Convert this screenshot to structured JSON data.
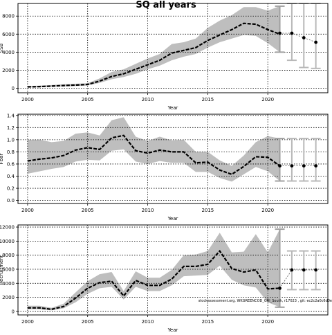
{
  "title": "SQ all years",
  "watermark": "stockassessment.org, WKGREENCOD_GRI_South, r17023 , git: ec2c2a0c6d0e",
  "chart_data": [
    {
      "type": "line",
      "xlabel": "Year",
      "ylabel": "SSB",
      "xlim": [
        1999.2,
        2025
      ],
      "ylim": [
        -500,
        9400
      ],
      "xticks": [
        2000,
        2005,
        2010,
        2015,
        2020
      ],
      "yticks": [
        0,
        2000,
        4000,
        6000,
        8000
      ],
      "ytick_labels": [
        "0",
        "2000",
        "4000",
        "6000",
        "8000"
      ],
      "grid": true,
      "band_color": "#bebebe",
      "line_color": "#000000",
      "x": [
        2000,
        2001,
        2002,
        2003,
        2004,
        2005,
        2006,
        2007,
        2008,
        2009,
        2010,
        2011,
        2012,
        2013,
        2014,
        2015,
        2016,
        2017,
        2018,
        2019,
        2020,
        2021
      ],
      "estimate": [
        150,
        180,
        240,
        300,
        350,
        420,
        800,
        1300,
        1600,
        2100,
        2600,
        3100,
        3900,
        4200,
        4500,
        5300,
        5900,
        6500,
        7200,
        7100,
        6500,
        6000
      ],
      "lower": [
        100,
        110,
        150,
        200,
        250,
        300,
        600,
        1000,
        1250,
        1600,
        2100,
        2500,
        3100,
        3500,
        3800,
        4500,
        5100,
        5500,
        5900,
        5800,
        5000,
        4000
      ],
      "upper": [
        250,
        280,
        350,
        450,
        500,
        550,
        1100,
        1800,
        2100,
        2700,
        3300,
        3800,
        4900,
        5100,
        5500,
        6700,
        7500,
        8100,
        9000,
        9000,
        8600,
        9100
      ],
      "forecast": [
        {
          "x": 2021,
          "median": 6100,
          "low": 4000,
          "high": 9100
        },
        {
          "x": 2022,
          "median": 6100,
          "low": 3100,
          "high": 9400
        },
        {
          "x": 2023,
          "median": 5600,
          "low": 2300,
          "high": 9400
        },
        {
          "x": 2024,
          "median": 5100,
          "low": 2200,
          "high": 9400
        }
      ]
    },
    {
      "type": "line",
      "xlabel": "Year",
      "ylabel": "Fbar",
      "xlim": [
        1999.2,
        2025
      ],
      "ylim": [
        -0.05,
        1.42
      ],
      "xticks": [
        2000,
        2005,
        2010,
        2015,
        2020
      ],
      "yticks": [
        0.0,
        0.2,
        0.4,
        0.6,
        0.8,
        1.0,
        1.2,
        1.4
      ],
      "ytick_labels": [
        "0.0",
        "0.2",
        "0.4",
        "0.6",
        "0.8",
        "1.0",
        "1.2",
        "1.4"
      ],
      "grid": true,
      "band_color": "#bebebe",
      "line_color": "#000000",
      "x": [
        2000,
        2001,
        2002,
        2003,
        2004,
        2005,
        2006,
        2007,
        2008,
        2009,
        2010,
        2011,
        2012,
        2013,
        2014,
        2015,
        2016,
        2017,
        2018,
        2019,
        2020,
        2021
      ],
      "estimate": [
        0.65,
        0.68,
        0.7,
        0.74,
        0.83,
        0.87,
        0.84,
        1.03,
        1.07,
        0.82,
        0.78,
        0.83,
        0.8,
        0.8,
        0.62,
        0.63,
        0.5,
        0.43,
        0.56,
        0.72,
        0.71,
        0.57
      ],
      "lower": [
        0.44,
        0.48,
        0.52,
        0.55,
        0.64,
        0.67,
        0.66,
        0.82,
        0.84,
        0.64,
        0.6,
        0.65,
        0.62,
        0.62,
        0.47,
        0.47,
        0.37,
        0.31,
        0.43,
        0.55,
        0.48,
        0.32
      ],
      "upper": [
        1.0,
        1.0,
        0.96,
        0.98,
        1.1,
        1.12,
        1.07,
        1.32,
        1.37,
        1.05,
        0.98,
        1.05,
        0.99,
        1.0,
        0.8,
        0.8,
        0.66,
        0.57,
        0.74,
        0.96,
        1.06,
        1.02
      ],
      "forecast": [
        {
          "x": 2021,
          "median": 0.57,
          "low": 0.32,
          "high": 1.02
        },
        {
          "x": 2022,
          "median": 0.57,
          "low": 0.32,
          "high": 1.02
        },
        {
          "x": 2023,
          "median": 0.57,
          "low": 0.32,
          "high": 1.02
        },
        {
          "x": 2024,
          "median": 0.57,
          "low": 0.32,
          "high": 1.02
        }
      ]
    },
    {
      "type": "line",
      "xlabel": "Year",
      "ylabel": "Recruitment",
      "xlim": [
        1999.2,
        2025
      ],
      "ylim": [
        -500,
        12300
      ],
      "xticks": [
        2000,
        2005,
        2010,
        2015,
        2020
      ],
      "yticks": [
        0,
        2000,
        4000,
        6000,
        8000,
        10000,
        12000
      ],
      "ytick_labels": [
        "0",
        "2000",
        "4000",
        "6000",
        "8000",
        "10000",
        "12000"
      ],
      "grid": true,
      "band_color": "#bebebe",
      "line_color": "#000000",
      "x": [
        2000,
        2001,
        2002,
        2003,
        2004,
        2005,
        2006,
        2007,
        2008,
        2009,
        2010,
        2011,
        2012,
        2013,
        2014,
        2015,
        2016,
        2017,
        2018,
        2019,
        2020,
        2021
      ],
      "estimate": [
        500,
        500,
        300,
        700,
        1900,
        3300,
        4100,
        4300,
        2200,
        4400,
        3700,
        3700,
        4600,
        6400,
        6400,
        6700,
        8600,
        6100,
        5600,
        5900,
        3200,
        3300
      ],
      "lower": [
        300,
        300,
        150,
        450,
        1300,
        2500,
        3300,
        3500,
        1700,
        3500,
        2900,
        2900,
        3700,
        5000,
        5100,
        5200,
        6500,
        4500,
        3700,
        3400,
        1300,
        600
      ],
      "upper": [
        800,
        800,
        500,
        1100,
        2700,
        4300,
        5300,
        5600,
        2900,
        5700,
        4800,
        4800,
        5900,
        8000,
        8100,
        8600,
        11200,
        8400,
        8500,
        11000,
        8400,
        11700
      ],
      "forecast": [
        {
          "x": 2021,
          "median": 3300,
          "low": 600,
          "high": 11700
        },
        {
          "x": 2022,
          "median": 5900,
          "low": 3100,
          "high": 8600
        },
        {
          "x": 2023,
          "median": 5900,
          "low": 3100,
          "high": 8600
        },
        {
          "x": 2024,
          "median": 5900,
          "low": 3100,
          "high": 8600
        }
      ]
    }
  ]
}
